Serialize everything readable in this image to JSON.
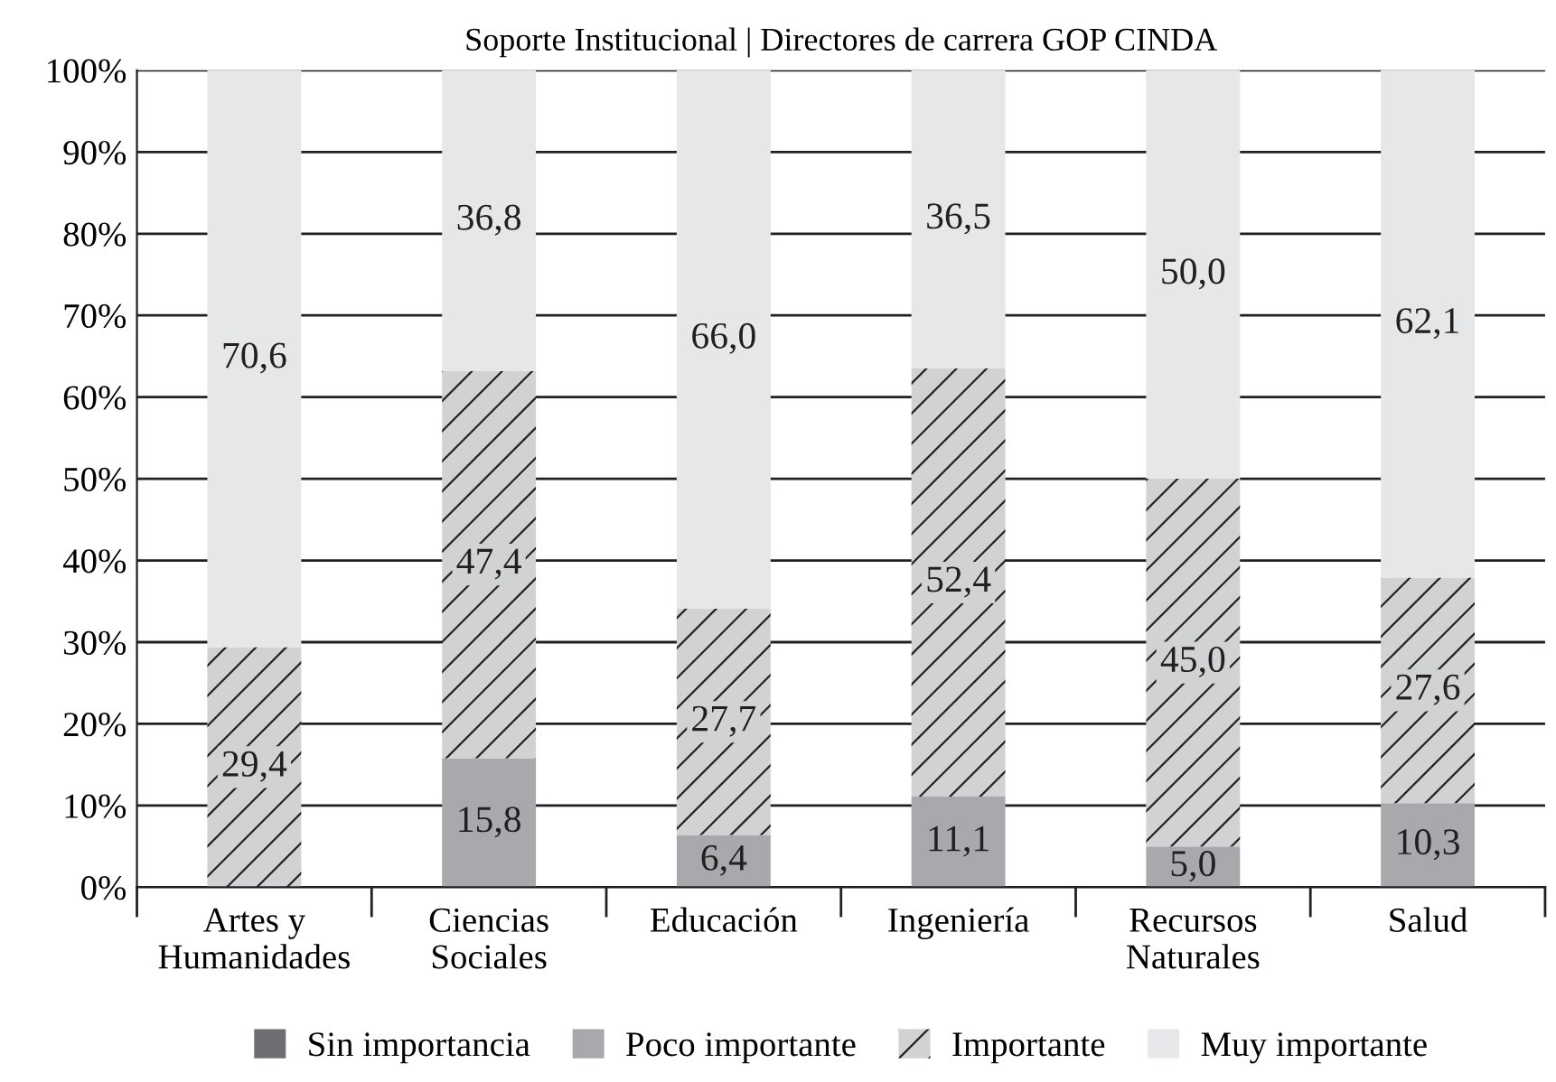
{
  "chart_data": {
    "type": "bar",
    "stacked": true,
    "title": "Soporte Institucional | Directores de carrera GOP CINDA",
    "categories": [
      "Artes y\nHumanidades",
      "Ciencias\nSociales",
      "Educación",
      "Ingeniería",
      "Recursos\nNaturales",
      "Salud"
    ],
    "series": [
      {
        "name": "Sin importancia",
        "color": "#6d6e71",
        "values": [
          0,
          0,
          0,
          0,
          0,
          0
        ],
        "value_labels": [
          null,
          null,
          null,
          null,
          null,
          null
        ]
      },
      {
        "name": "Poco importante",
        "color": "#a7a9ac",
        "values": [
          0,
          15.8,
          6.4,
          11.1,
          5.0,
          10.3
        ],
        "value_labels": [
          null,
          "15,8",
          "6,4",
          "11,1",
          "5,0",
          "10,3"
        ]
      },
      {
        "name": "Importante",
        "color": "#d1d2d4",
        "values": [
          29.4,
          47.4,
          27.7,
          52.4,
          45.0,
          27.6
        ],
        "value_labels": [
          "29,4",
          "47,4",
          "27,7",
          "52,4",
          "45,0",
          "27,6"
        ]
      },
      {
        "name": "Muy importante",
        "color": "#e6e7e8",
        "values": [
          70.6,
          36.8,
          66.0,
          36.5,
          50.0,
          62.1
        ],
        "value_labels": [
          "70,6",
          "36,8",
          "66,0",
          "36,5",
          "50,0",
          "62,1"
        ]
      }
    ],
    "ylim": [
      0,
      100
    ],
    "yticks": [
      {
        "value": 0,
        "label": "0%"
      },
      {
        "value": 10,
        "label": "10%"
      },
      {
        "value": 20,
        "label": "20%"
      },
      {
        "value": 30,
        "label": "30%"
      },
      {
        "value": 40,
        "label": "40%"
      },
      {
        "value": 50,
        "label": "50%"
      },
      {
        "value": 60,
        "label": "60%"
      },
      {
        "value": 70,
        "label": "70%"
      },
      {
        "value": 80,
        "label": "80%"
      },
      {
        "value": 90,
        "label": "90%"
      },
      {
        "value": 100,
        "label": "100%"
      }
    ],
    "grid": "y",
    "legend": "bottom"
  }
}
